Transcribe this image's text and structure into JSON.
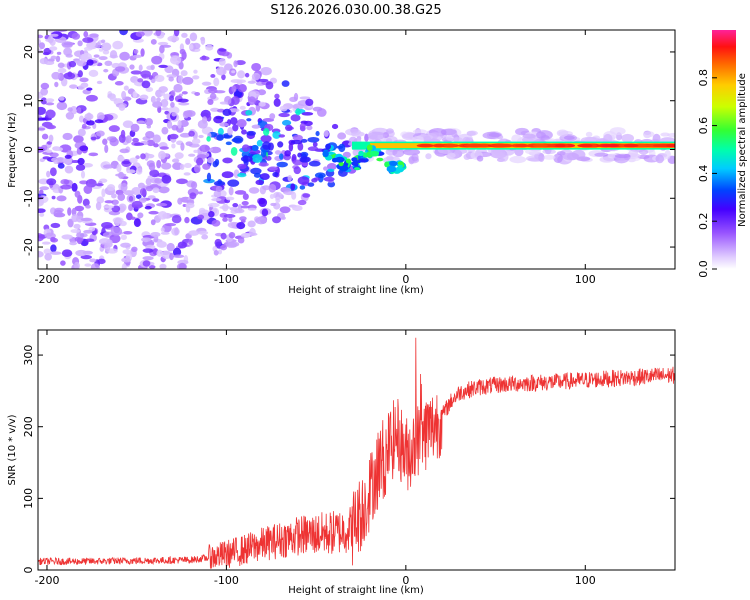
{
  "title": "S126.2026.030.00.38.G25",
  "chart_data": [
    {
      "type": "heatmap",
      "name": "spectrogram",
      "xlabel": "Height of straight line (km)",
      "ylabel": "Frequency (Hz)",
      "xlim": [
        -205,
        150
      ],
      "ylim": [
        -24.5,
        24.5
      ],
      "xticks": [
        -200,
        -100,
        0,
        100
      ],
      "yticks": [
        -20,
        -10,
        0,
        10,
        20
      ],
      "colorbar": {
        "label": "Normalized spectral amplitude",
        "range": [
          0,
          1
        ],
        "ticks": [
          0.0,
          0.2,
          0.4,
          0.6,
          0.8
        ]
      },
      "description": "Scattered low-amplitude noise for heights below about -30 km; a narrow high-amplitude line near 0-1 Hz from about -30 km to 150 km."
    },
    {
      "type": "line",
      "name": "snr",
      "xlabel": "Height of straight line (km)",
      "ylabel": "SNR (10 * v/v)",
      "xlim": [
        -205,
        150
      ],
      "ylim": [
        0,
        335
      ],
      "xticks": [
        -200,
        -100,
        0,
        100
      ],
      "yticks": [
        0,
        100,
        200,
        300
      ],
      "color": "#ee3333",
      "series": [
        {
          "name": "SNR envelope (approx.)",
          "x": [
            -205,
            -180,
            -150,
            -120,
            -110,
            -100,
            -90,
            -80,
            -70,
            -60,
            -50,
            -40,
            -30,
            -25,
            -20,
            -15,
            -10,
            -5,
            0,
            5,
            10,
            15,
            20,
            25,
            30,
            40,
            50,
            60,
            80,
            100,
            120,
            150
          ],
          "y": [
            12,
            12,
            13,
            14,
            17,
            22,
            28,
            36,
            42,
            48,
            50,
            52,
            58,
            80,
            110,
            150,
            170,
            190,
            160,
            175,
            190,
            200,
            215,
            235,
            248,
            255,
            258,
            260,
            262,
            265,
            268,
            272
          ]
        }
      ]
    }
  ]
}
